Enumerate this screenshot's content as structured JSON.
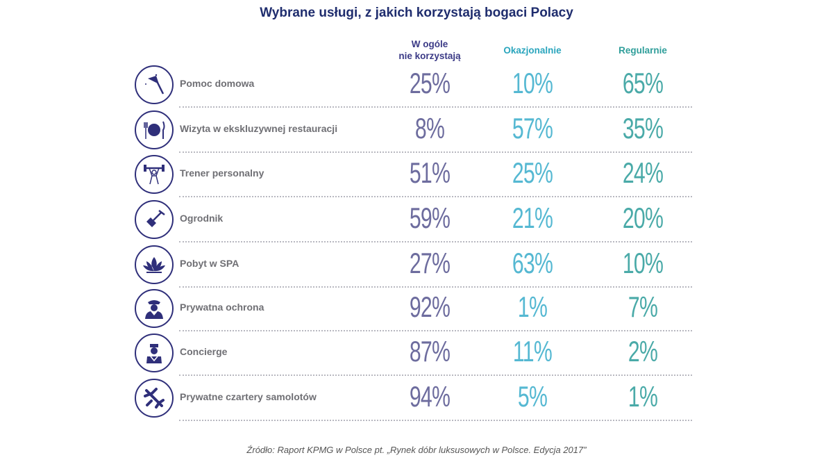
{
  "chart_data": {
    "type": "table",
    "title": "Wybrane usługi, z jakich korzystają bogaci Polacy",
    "columns": [
      "W ogóle nie korzystają",
      "Okazjonalnie",
      "Regularnie"
    ],
    "column_header_lines": [
      [
        "W ogóle",
        "nie korzystają"
      ],
      [
        "Okazjonalnie"
      ],
      [
        "Regularnie"
      ]
    ],
    "rows": [
      {
        "label": "Pomoc domowa",
        "icon": "feather-duster-icon",
        "values": [
          "25%",
          "10%",
          "65%"
        ]
      },
      {
        "label": "Wizyta w ekskluzywnej restauracji",
        "icon": "plate-cutlery-icon",
        "values": [
          "8%",
          "57%",
          "35%"
        ]
      },
      {
        "label": "Trener personalny",
        "icon": "weightlifter-icon",
        "values": [
          "51%",
          "25%",
          "24%"
        ]
      },
      {
        "label": "Ogrodnik",
        "icon": "shovel-icon",
        "values": [
          "59%",
          "21%",
          "20%"
        ]
      },
      {
        "label": "Pobyt w SPA",
        "icon": "lotus-icon",
        "values": [
          "27%",
          "63%",
          "10%"
        ]
      },
      {
        "label": "Prywatna ochrona",
        "icon": "security-guard-icon",
        "values": [
          "92%",
          "1%",
          "7%"
        ]
      },
      {
        "label": "Concierge",
        "icon": "concierge-icon",
        "values": [
          "87%",
          "11%",
          "2%"
        ]
      },
      {
        "label": "Prywatne czartery samolotów",
        "icon": "airplane-icon",
        "values": [
          "94%",
          "5%",
          "1%"
        ]
      }
    ],
    "source": "Źródło: Raport KPMG w Polsce pt. „Rynek dóbr luksusowych w Polsce. Edycja 2017”"
  },
  "colors": {
    "title": "#1f2d6e",
    "col1": "#3b3a86",
    "col2": "#2aa5bd",
    "col3": "#2f9e9a",
    "icon": "#2f2f7a"
  }
}
